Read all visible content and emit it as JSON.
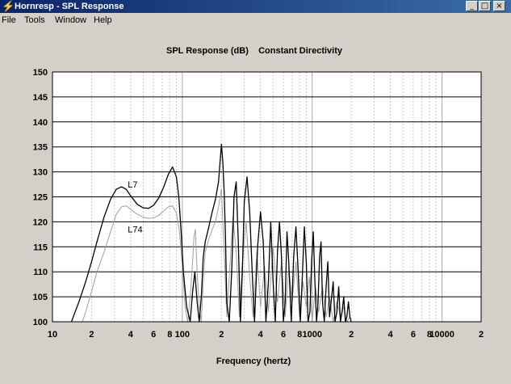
{
  "window": {
    "title": "Hornresp - SPL Response",
    "min_glyph": "_",
    "max_glyph": "□",
    "close_glyph": "×"
  },
  "menu": [
    "File",
    "Tools",
    "Window",
    "Help"
  ],
  "colors": {
    "plot_bg": "#ffffff",
    "curve_l7": "#000000",
    "curve_l74": "#a0a0a0",
    "grid": "#c8c8c8"
  },
  "chart_data": {
    "type": "line",
    "title": "SPL Response (dB)    Constant Directivity",
    "xlabel": "Frequency (hertz)",
    "ylabel": "",
    "x_scale": "log",
    "xlim": [
      10,
      20000
    ],
    "ylim": [
      100,
      150
    ],
    "yticks": [
      100,
      105,
      110,
      115,
      120,
      125,
      130,
      135,
      140,
      145,
      150
    ],
    "xtick_labels": [
      {
        "f": 10,
        "label": "10"
      },
      {
        "f": 20,
        "label": "2"
      },
      {
        "f": 40,
        "label": "4"
      },
      {
        "f": 60,
        "label": "6"
      },
      {
        "f": 80,
        "label": "8"
      },
      {
        "f": 100,
        "label": "100"
      },
      {
        "f": 200,
        "label": "2"
      },
      {
        "f": 400,
        "label": "4"
      },
      {
        "f": 600,
        "label": "6"
      },
      {
        "f": 800,
        "label": "8"
      },
      {
        "f": 1000,
        "label": "1000"
      },
      {
        "f": 2000,
        "label": "2"
      },
      {
        "f": 4000,
        "label": "4"
      },
      {
        "f": 6000,
        "label": "6"
      },
      {
        "f": 8000,
        "label": "8"
      },
      {
        "f": 10000,
        "label": "10000"
      },
      {
        "f": 20000,
        "label": "2"
      }
    ],
    "grid": true,
    "series": [
      {
        "name": "L7",
        "x": [
          14,
          16,
          18,
          20,
          22,
          25,
          28,
          31,
          34,
          37,
          40,
          45,
          50,
          55,
          60,
          66,
          72,
          78,
          84,
          90,
          94,
          98,
          102,
          108,
          115,
          120,
          125,
          130,
          135,
          140,
          145,
          150,
          155,
          160,
          170,
          180,
          190,
          200,
          205,
          210,
          215,
          220,
          230,
          240,
          250,
          260,
          270,
          280,
          290,
          300,
          315,
          330,
          345,
          360,
          380,
          400,
          420,
          440,
          460,
          480,
          500,
          520,
          540,
          560,
          580,
          600,
          620,
          640,
          660,
          690,
          720,
          750,
          780,
          810,
          840,
          870,
          900,
          930,
          960,
          990,
          1020,
          1050,
          1080,
          1110,
          1140,
          1170,
          1200,
          1240,
          1280,
          1320,
          1360,
          1400,
          1450,
          1500,
          1550,
          1600,
          1650,
          1700,
          1750,
          1800,
          1850,
          1900,
          1950,
          2000
        ],
        "y": [
          100,
          104,
          108,
          112,
          116,
          121,
          124.5,
          126.5,
          127,
          126.5,
          125.2,
          123.5,
          122.8,
          122.7,
          123.3,
          124.8,
          127,
          129.5,
          131,
          129,
          125,
          118,
          110,
          103,
          100,
          106,
          110,
          104,
          100,
          105,
          113,
          116,
          117.5,
          119,
          122,
          124.5,
          128,
          135.5,
          132,
          126,
          117,
          104,
          100,
          110,
          125,
          128,
          116,
          100,
          110,
          124,
          129,
          122,
          110,
          100,
          115,
          122,
          116,
          100,
          108,
          120,
          108,
          100,
          114,
          120,
          113,
          100,
          104,
          118,
          112,
          100,
          113,
          119,
          110,
          100,
          109,
          119,
          112,
          100,
          102,
          112,
          118,
          108,
          100,
          104,
          113,
          116,
          104,
          100,
          107,
          112,
          101,
          104,
          108,
          100,
          102,
          107,
          100,
          102,
          105,
          100,
          101,
          104,
          101,
          100
        ]
      },
      {
        "name": "L74",
        "x": [
          17,
          18,
          20,
          22,
          25,
          28,
          31,
          34,
          37,
          40,
          45,
          50,
          55,
          60,
          66,
          72,
          78,
          84,
          90,
          95,
          100,
          105,
          110,
          115,
          120,
          123,
          126,
          130,
          135,
          140,
          145,
          150,
          160,
          170,
          180,
          190,
          200,
          210,
          220,
          230,
          245,
          260,
          275,
          290,
          310,
          330,
          350,
          375,
          400,
          430,
          460,
          500,
          540,
          580,
          620,
          660,
          700,
          750,
          800,
          850,
          900,
          950,
          1000,
          1060,
          1120,
          1200,
          1280,
          1360,
          1450,
          1550,
          1650,
          1750,
          1850,
          1950
        ],
        "y": [
          100,
          102,
          106,
          110,
          114,
          118,
          121.5,
          123,
          123.2,
          122.5,
          121.5,
          120.9,
          120.7,
          120.8,
          121.3,
          122.2,
          123,
          123.2,
          121.8,
          118,
          111,
          103,
          100,
          105,
          112,
          117,
          118.5,
          110,
          103,
          100,
          108,
          114,
          116.5,
          118.5,
          120,
          123,
          126.5,
          114,
          101,
          109,
          121,
          114,
          101,
          112,
          120,
          109,
          101,
          114,
          103,
          111,
          102,
          115,
          104,
          112,
          101,
          111,
          104,
          112,
          101,
          108,
          103,
          109,
          100,
          107,
          102,
          107,
          101,
          105,
          100,
          104,
          101,
          103,
          100,
          101
        ]
      }
    ],
    "annotations": [
      {
        "text": "L7",
        "x": 38,
        "y": 127.5
      },
      {
        "text": "L74",
        "x": 38,
        "y": 118.5
      }
    ]
  }
}
